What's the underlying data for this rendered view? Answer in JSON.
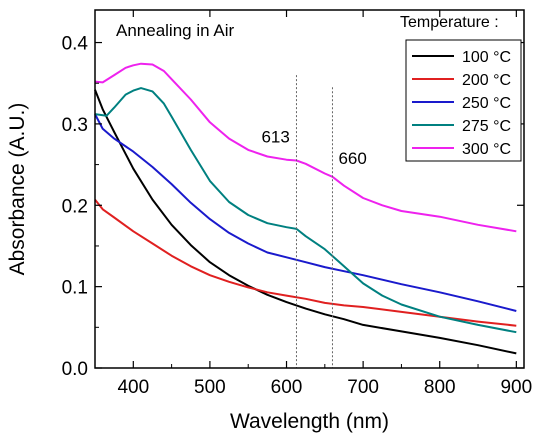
{
  "chart_data": {
    "type": "line",
    "title": "",
    "inset_title": "Annealing in Air",
    "xlabel": "Wavelength (nm)",
    "ylabel": "Absorbance (A.U.)",
    "xlim": [
      350,
      910
    ],
    "ylim": [
      0.0,
      0.44
    ],
    "x_ticks": [
      400,
      500,
      600,
      700,
      800,
      900
    ],
    "y_ticks": [
      0.0,
      0.1,
      0.2,
      0.3,
      0.4
    ],
    "x_tick_labels": [
      "400",
      "500",
      "600",
      "700",
      "800",
      "900"
    ],
    "y_tick_labels": [
      "0.0",
      "0.1",
      "0.2",
      "0.3",
      "0.4"
    ],
    "grid": false,
    "legend": {
      "title": "Temperature :",
      "placement": "top-right",
      "entries": [
        "100 °C",
        "200 °C",
        "250 °C",
        "275 °C",
        "300 °C"
      ]
    },
    "reference_lines": [
      {
        "x": 613,
        "label": "613"
      },
      {
        "x": 660,
        "label": "660"
      }
    ],
    "series": [
      {
        "name": "100 °C",
        "color": "#000000",
        "x": [
          350,
          360,
          375,
          400,
          425,
          450,
          475,
          500,
          525,
          550,
          575,
          600,
          625,
          650,
          675,
          700,
          750,
          800,
          850,
          900
        ],
        "y": [
          0.342,
          0.318,
          0.29,
          0.245,
          0.207,
          0.176,
          0.151,
          0.13,
          0.114,
          0.101,
          0.09,
          0.081,
          0.073,
          0.066,
          0.06,
          0.053,
          0.045,
          0.037,
          0.028,
          0.018
        ]
      },
      {
        "name": "200 °C",
        "color": "#e02020",
        "x": [
          350,
          360,
          375,
          400,
          425,
          450,
          475,
          500,
          525,
          550,
          575,
          600,
          625,
          650,
          675,
          700,
          750,
          800,
          850,
          900
        ],
        "y": [
          0.207,
          0.195,
          0.185,
          0.168,
          0.153,
          0.138,
          0.125,
          0.114,
          0.106,
          0.099,
          0.093,
          0.089,
          0.085,
          0.08,
          0.077,
          0.075,
          0.069,
          0.063,
          0.057,
          0.052
        ]
      },
      {
        "name": "250 °C",
        "color": "#1a1acc",
        "x": [
          350,
          360,
          375,
          400,
          425,
          450,
          475,
          500,
          525,
          550,
          575,
          600,
          625,
          650,
          675,
          700,
          750,
          800,
          850,
          900
        ],
        "y": [
          0.312,
          0.294,
          0.282,
          0.266,
          0.247,
          0.226,
          0.203,
          0.183,
          0.166,
          0.153,
          0.142,
          0.136,
          0.13,
          0.124,
          0.119,
          0.114,
          0.103,
          0.093,
          0.082,
          0.07
        ]
      },
      {
        "name": "275 °C",
        "color": "#008080",
        "x": [
          350,
          365,
          375,
          390,
          400,
          410,
          425,
          440,
          450,
          475,
          500,
          525,
          550,
          575,
          600,
          613,
          625,
          650,
          675,
          700,
          725,
          750,
          800,
          850,
          900
        ],
        "y": [
          0.312,
          0.31,
          0.32,
          0.336,
          0.341,
          0.344,
          0.34,
          0.325,
          0.309,
          0.268,
          0.23,
          0.204,
          0.188,
          0.178,
          0.173,
          0.171,
          0.162,
          0.146,
          0.125,
          0.104,
          0.089,
          0.078,
          0.063,
          0.053,
          0.044
        ]
      },
      {
        "name": "300 °C",
        "color": "#ee22ee",
        "x": [
          350,
          360,
          375,
          390,
          400,
          410,
          425,
          440,
          450,
          475,
          500,
          525,
          550,
          575,
          600,
          613,
          625,
          650,
          660,
          675,
          700,
          725,
          750,
          800,
          850,
          900
        ],
        "y": [
          0.352,
          0.351,
          0.36,
          0.369,
          0.372,
          0.374,
          0.373,
          0.365,
          0.355,
          0.33,
          0.302,
          0.282,
          0.268,
          0.26,
          0.256,
          0.255,
          0.251,
          0.239,
          0.235,
          0.224,
          0.209,
          0.2,
          0.193,
          0.186,
          0.176,
          0.168
        ]
      }
    ]
  }
}
